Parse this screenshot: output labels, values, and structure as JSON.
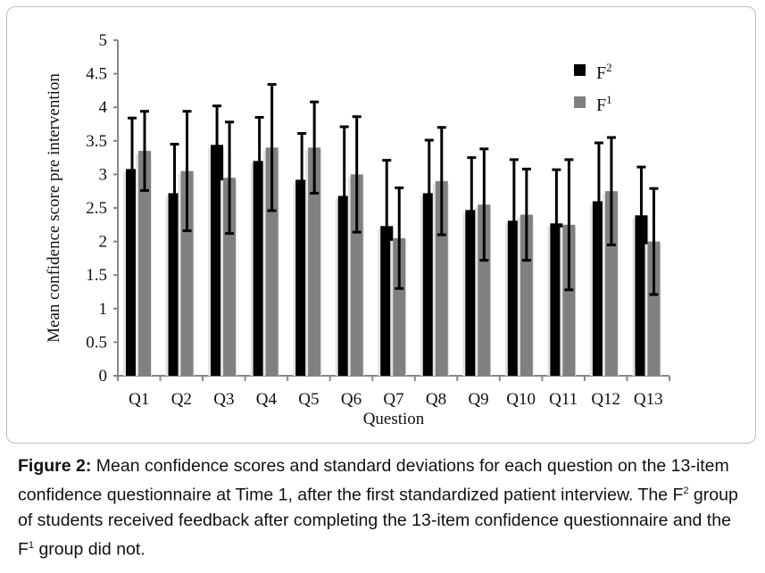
{
  "chart_data": {
    "type": "bar",
    "title": "",
    "xlabel": "Question",
    "ylabel": "Mean confidence score pre intervention",
    "ylim": [
      0,
      5
    ],
    "yticks": [
      "0",
      "0.5",
      "1",
      "1.5",
      "2",
      "2.5",
      "3",
      "3.5",
      "4",
      "4.5",
      "5"
    ],
    "categories": [
      "Q1",
      "Q2",
      "Q3",
      "Q4",
      "Q5",
      "Q6",
      "Q7",
      "Q8",
      "Q9",
      "Q10",
      "Q11",
      "Q12",
      "Q13"
    ],
    "legend_placement": "top-right",
    "series": [
      {
        "name": "F",
        "sup": "2",
        "color": "#000000",
        "values": [
          3.08,
          2.72,
          3.44,
          3.2,
          2.92,
          2.68,
          2.23,
          2.72,
          2.47,
          2.31,
          2.27,
          2.6,
          2.39
        ],
        "sd": [
          0.76,
          0.73,
          0.58,
          0.65,
          0.69,
          1.03,
          0.98,
          0.79,
          0.78,
          0.91,
          0.8,
          0.87,
          0.72
        ]
      },
      {
        "name": "F",
        "sup": "1",
        "color": "#808080",
        "values": [
          3.35,
          3.05,
          2.95,
          3.4,
          3.4,
          3.0,
          2.05,
          2.9,
          2.55,
          2.4,
          2.25,
          2.75,
          2.0
        ],
        "sd": [
          0.59,
          0.89,
          0.83,
          0.94,
          0.68,
          0.86,
          0.75,
          0.8,
          0.83,
          0.68,
          0.97,
          0.8,
          0.79
        ]
      }
    ]
  },
  "caption": {
    "label": "Figure 2:",
    "text_1": " Mean confidence scores and standard deviations for each question on the 13-item confidence questionnaire at Time 1, after the first standardized patient interview. The F",
    "sup_1": "2",
    "text_2": " group of students received feedback after completing the 13-item confidence questionnaire and the F",
    "sup_2": "1",
    "text_3": " group did not."
  }
}
